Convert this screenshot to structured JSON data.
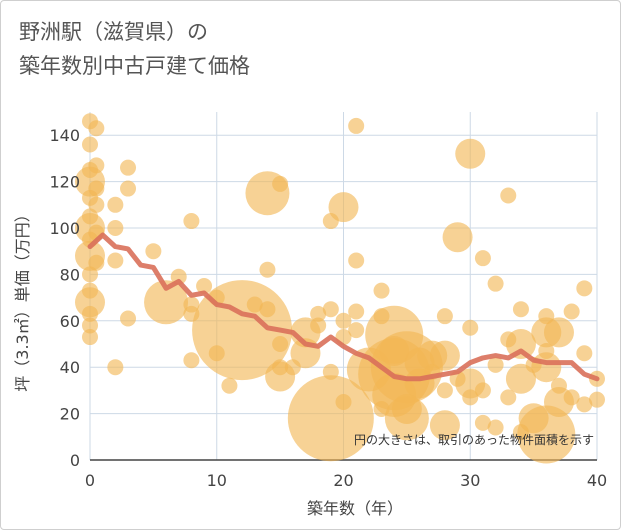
{
  "title": {
    "line1": "野洲駅（滋賀県）の",
    "line2": "築年数別中古戸建て価格"
  },
  "note": "円の大きさは、取引のあった物件面積を示す",
  "colors": {
    "bubble": "#f2b654",
    "line": "#d9705a",
    "grid": "#cdd9e6",
    "axis": "#444444"
  },
  "chart_data": {
    "type": "scatter",
    "xlabel": "築年数（年）",
    "ylabel": "坪（3.3㎡）単価（万円）",
    "xlim": [
      0,
      40
    ],
    "ylim": [
      0,
      150
    ],
    "x_ticks": [
      0,
      10,
      20,
      30,
      40
    ],
    "y_ticks": [
      0,
      20,
      40,
      60,
      80,
      100,
      120,
      140
    ],
    "grid": true,
    "series": [
      {
        "type": "bubble",
        "points": [
          {
            "x": 0,
            "y": 146,
            "s": 1
          },
          {
            "x": 0,
            "y": 136,
            "s": 1
          },
          {
            "x": 0,
            "y": 125,
            "s": 1
          },
          {
            "x": 0,
            "y": 120,
            "s": 2
          },
          {
            "x": 0,
            "y": 113,
            "s": 1
          },
          {
            "x": 0,
            "y": 105,
            "s": 1
          },
          {
            "x": 0,
            "y": 100,
            "s": 2
          },
          {
            "x": 0,
            "y": 95,
            "s": 1
          },
          {
            "x": 0,
            "y": 88,
            "s": 2
          },
          {
            "x": 0,
            "y": 80,
            "s": 1
          },
          {
            "x": 0,
            "y": 73,
            "s": 1
          },
          {
            "x": 0,
            "y": 68,
            "s": 2
          },
          {
            "x": 0,
            "y": 63,
            "s": 1
          },
          {
            "x": 0,
            "y": 58,
            "s": 1
          },
          {
            "x": 0,
            "y": 53,
            "s": 1
          },
          {
            "x": 0.5,
            "y": 143,
            "s": 1
          },
          {
            "x": 0.5,
            "y": 127,
            "s": 1
          },
          {
            "x": 0.5,
            "y": 117,
            "s": 1
          },
          {
            "x": 0.5,
            "y": 110,
            "s": 1
          },
          {
            "x": 0.5,
            "y": 98,
            "s": 1
          },
          {
            "x": 0.5,
            "y": 85,
            "s": 1
          },
          {
            "x": 2,
            "y": 110,
            "s": 1
          },
          {
            "x": 2,
            "y": 100,
            "s": 1
          },
          {
            "x": 2,
            "y": 86,
            "s": 1
          },
          {
            "x": 2,
            "y": 40,
            "s": 1
          },
          {
            "x": 3,
            "y": 126,
            "s": 1
          },
          {
            "x": 3,
            "y": 117,
            "s": 1
          },
          {
            "x": 3,
            "y": 61,
            "s": 1
          },
          {
            "x": 5,
            "y": 90,
            "s": 1
          },
          {
            "x": 6,
            "y": 68,
            "s": 3
          },
          {
            "x": 7,
            "y": 79,
            "s": 1
          },
          {
            "x": 8,
            "y": 103,
            "s": 1
          },
          {
            "x": 8,
            "y": 67,
            "s": 1
          },
          {
            "x": 8,
            "y": 63,
            "s": 1
          },
          {
            "x": 8,
            "y": 43,
            "s": 1
          },
          {
            "x": 9,
            "y": 75,
            "s": 1
          },
          {
            "x": 10,
            "y": 70,
            "s": 1
          },
          {
            "x": 10,
            "y": 46,
            "s": 1
          },
          {
            "x": 11,
            "y": 32,
            "s": 1
          },
          {
            "x": 12,
            "y": 56,
            "s": 7
          },
          {
            "x": 13,
            "y": 67,
            "s": 1
          },
          {
            "x": 14,
            "y": 115,
            "s": 3
          },
          {
            "x": 14,
            "y": 82,
            "s": 1
          },
          {
            "x": 14,
            "y": 65,
            "s": 1
          },
          {
            "x": 15,
            "y": 119,
            "s": 1
          },
          {
            "x": 15,
            "y": 50,
            "s": 1
          },
          {
            "x": 15,
            "y": 40,
            "s": 1
          },
          {
            "x": 15,
            "y": 36,
            "s": 2
          },
          {
            "x": 16,
            "y": 40,
            "s": 1
          },
          {
            "x": 17,
            "y": 55,
            "s": 2
          },
          {
            "x": 17,
            "y": 46,
            "s": 2
          },
          {
            "x": 18,
            "y": 63,
            "s": 1
          },
          {
            "x": 18,
            "y": 58,
            "s": 1
          },
          {
            "x": 19,
            "y": 18,
            "s": 6
          },
          {
            "x": 19,
            "y": 103,
            "s": 1
          },
          {
            "x": 19,
            "y": 65,
            "s": 1
          },
          {
            "x": 19,
            "y": 38,
            "s": 1
          },
          {
            "x": 20,
            "y": 109,
            "s": 2
          },
          {
            "x": 20,
            "y": 60,
            "s": 1
          },
          {
            "x": 20,
            "y": 53,
            "s": 1
          },
          {
            "x": 20,
            "y": 25,
            "s": 1
          },
          {
            "x": 21,
            "y": 144,
            "s": 1
          },
          {
            "x": 21,
            "y": 86,
            "s": 1
          },
          {
            "x": 21,
            "y": 64,
            "s": 1
          },
          {
            "x": 21,
            "y": 56,
            "s": 1
          },
          {
            "x": 22,
            "y": 39,
            "s": 3
          },
          {
            "x": 23,
            "y": 73,
            "s": 1
          },
          {
            "x": 23,
            "y": 62,
            "s": 1
          },
          {
            "x": 23,
            "y": 22,
            "s": 1
          },
          {
            "x": 24,
            "y": 54,
            "s": 4
          },
          {
            "x": 24,
            "y": 47,
            "s": 2
          },
          {
            "x": 24,
            "y": 37,
            "s": 5
          },
          {
            "x": 24,
            "y": 28,
            "s": 3
          },
          {
            "x": 25,
            "y": 40,
            "s": 5
          },
          {
            "x": 25,
            "y": 22,
            "s": 2
          },
          {
            "x": 25,
            "y": 18,
            "s": 3
          },
          {
            "x": 26,
            "y": 42,
            "s": 2
          },
          {
            "x": 26,
            "y": 33,
            "s": 2
          },
          {
            "x": 27,
            "y": 45,
            "s": 2
          },
          {
            "x": 27,
            "y": 38,
            "s": 1
          },
          {
            "x": 28,
            "y": 62,
            "s": 1
          },
          {
            "x": 28,
            "y": 45,
            "s": 2
          },
          {
            "x": 28,
            "y": 30,
            "s": 1
          },
          {
            "x": 28,
            "y": 15,
            "s": 2
          },
          {
            "x": 29,
            "y": 96,
            "s": 2
          },
          {
            "x": 29,
            "y": 35,
            "s": 1
          },
          {
            "x": 30,
            "y": 132,
            "s": 2
          },
          {
            "x": 30,
            "y": 57,
            "s": 1
          },
          {
            "x": 30,
            "y": 33,
            "s": 2
          },
          {
            "x": 30,
            "y": 27,
            "s": 1
          },
          {
            "x": 31,
            "y": 87,
            "s": 1
          },
          {
            "x": 31,
            "y": 30,
            "s": 1
          },
          {
            "x": 31,
            "y": 16,
            "s": 1
          },
          {
            "x": 32,
            "y": 76,
            "s": 1
          },
          {
            "x": 32,
            "y": 41,
            "s": 1
          },
          {
            "x": 32,
            "y": 14,
            "s": 1
          },
          {
            "x": 33,
            "y": 114,
            "s": 1
          },
          {
            "x": 33,
            "y": 52,
            "s": 1
          },
          {
            "x": 33,
            "y": 27,
            "s": 1
          },
          {
            "x": 34,
            "y": 65,
            "s": 1
          },
          {
            "x": 34,
            "y": 50,
            "s": 2
          },
          {
            "x": 34,
            "y": 35,
            "s": 2
          },
          {
            "x": 34,
            "y": 12,
            "s": 1
          },
          {
            "x": 35,
            "y": 41,
            "s": 1
          },
          {
            "x": 35,
            "y": 18,
            "s": 2
          },
          {
            "x": 36,
            "y": 62,
            "s": 1
          },
          {
            "x": 36,
            "y": 55,
            "s": 2
          },
          {
            "x": 36,
            "y": 47,
            "s": 1
          },
          {
            "x": 36,
            "y": 40,
            "s": 2
          },
          {
            "x": 36,
            "y": 11,
            "s": 4
          },
          {
            "x": 37,
            "y": 55,
            "s": 2
          },
          {
            "x": 37,
            "y": 32,
            "s": 1
          },
          {
            "x": 37,
            "y": 25,
            "s": 2
          },
          {
            "x": 38,
            "y": 64,
            "s": 1
          },
          {
            "x": 38,
            "y": 27,
            "s": 1
          },
          {
            "x": 39,
            "y": 74,
            "s": 1
          },
          {
            "x": 39,
            "y": 46,
            "s": 1
          },
          {
            "x": 39,
            "y": 24,
            "s": 1
          },
          {
            "x": 40,
            "y": 35,
            "s": 1
          },
          {
            "x": 40,
            "y": 26,
            "s": 1
          }
        ]
      },
      {
        "type": "line",
        "x": [
          0,
          1,
          2,
          3,
          4,
          5,
          6,
          7,
          8,
          9,
          10,
          11,
          12,
          13,
          14,
          15,
          16,
          17,
          18,
          19,
          20,
          21,
          22,
          23,
          24,
          25,
          26,
          27,
          28,
          29,
          30,
          31,
          32,
          33,
          34,
          35,
          36,
          37,
          38,
          39,
          40
        ],
        "y": [
          92,
          97,
          92,
          91,
          84,
          83,
          74,
          77,
          71,
          72,
          67,
          66,
          63,
          62,
          57,
          56,
          55,
          50,
          49,
          53,
          49,
          46,
          44,
          40,
          36,
          35,
          35,
          36,
          37,
          38,
          42,
          44,
          45,
          44,
          47,
          43,
          42,
          42,
          42,
          37,
          35
        ]
      }
    ]
  }
}
